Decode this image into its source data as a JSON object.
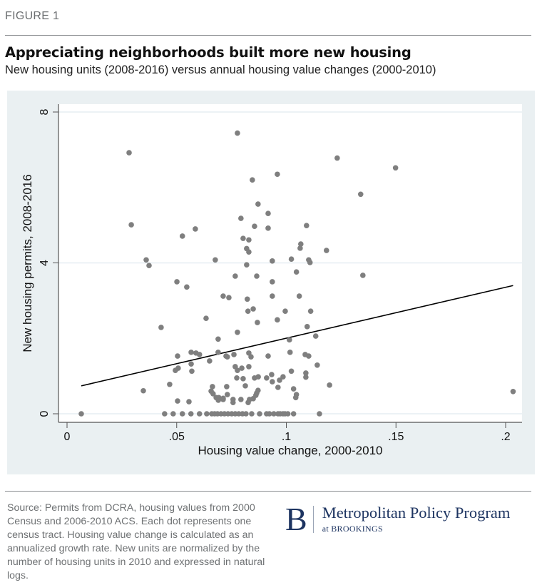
{
  "figure_label": "FIGURE 1",
  "title": "Appreciating neighborhoods built more new housing",
  "subtitle": "New housing units (2008-2016) versus annual housing value changes (2000-2010)",
  "source_note": "Source: Permits from DCRA, housing values from 2000 Census and 2006-2010 ACS. Each dot represents one census tract. Housing value change is calculated as an annualized growth rate. New units are normalized by the number of housing units in 2010 and expressed in natural logs.",
  "logo": {
    "icon": "brookings-b-logo",
    "letter": "B",
    "program": "Metropolitan Policy Program",
    "org": "at BROOKINGS"
  },
  "colors": {
    "panel_bg": "#eaf0f2",
    "plot_bg": "#ffffff",
    "dot": "#7f7f7f",
    "fit_line": "#000000",
    "grid": "#e6eef2",
    "brand": "#1d3461"
  },
  "chart_data": {
    "type": "scatter",
    "title": "Appreciating neighborhoods built more new housing",
    "xlabel": "Housing value change, 2000-2010",
    "ylabel": "New housing permits, 2008-2016",
    "xlim": [
      -0.004,
      0.207
    ],
    "ylim": [
      -0.25,
      8.2
    ],
    "x_ticks": [
      0,
      0.05,
      0.1,
      0.15,
      0.2
    ],
    "x_tick_labels": [
      "0",
      ".05",
      ".1",
      ".15",
      ".2"
    ],
    "y_ticks": [
      0,
      4,
      8
    ],
    "y_tick_labels": [
      "0",
      "4",
      "8"
    ],
    "grid": "horizontal at y ticks",
    "legend": "none",
    "fit_line": {
      "x": [
        0.0065,
        0.2034
      ],
      "y": [
        0.74,
        3.4
      ]
    },
    "points": [
      [
        0.0065,
        0
      ],
      [
        0.0445,
        0
      ],
      [
        0.0484,
        0
      ],
      [
        0.0526,
        0
      ],
      [
        0.0565,
        0
      ],
      [
        0.0604,
        0
      ],
      [
        0.0637,
        0
      ],
      [
        0.066,
        0
      ],
      [
        0.0673,
        0
      ],
      [
        0.0686,
        0
      ],
      [
        0.0702,
        0
      ],
      [
        0.0718,
        0
      ],
      [
        0.0734,
        0
      ],
      [
        0.0751,
        0
      ],
      [
        0.0767,
        0
      ],
      [
        0.0783,
        0
      ],
      [
        0.08,
        0
      ],
      [
        0.0816,
        0
      ],
      [
        0.0842,
        0
      ],
      [
        0.0878,
        0
      ],
      [
        0.091,
        0
      ],
      [
        0.0923,
        0
      ],
      [
        0.0943,
        0
      ],
      [
        0.0962,
        0
      ],
      [
        0.0972,
        0
      ],
      [
        0.0985,
        0
      ],
      [
        0.0994,
        0
      ],
      [
        0.1007,
        0
      ],
      [
        0.1033,
        0
      ],
      [
        0.1151,
        0
      ],
      [
        0.0283,
        6.92
      ],
      [
        0.0293,
        5.01
      ],
      [
        0.0777,
        7.44
      ],
      [
        0.1232,
        6.78
      ],
      [
        0.1498,
        6.52
      ],
      [
        0.0845,
        6.2
      ],
      [
        0.0959,
        6.35
      ],
      [
        0.0871,
        5.56
      ],
      [
        0.0917,
        5.31
      ],
      [
        0.0793,
        5.18
      ],
      [
        0.0855,
        4.97
      ],
      [
        0.0917,
        4.92
      ],
      [
        0.1092,
        4.99
      ],
      [
        0.0526,
        4.71
      ],
      [
        0.0585,
        4.9
      ],
      [
        0.0803,
        4.65
      ],
      [
        0.0829,
        4.61
      ],
      [
        0.1339,
        5.82
      ],
      [
        0.1183,
        4.33
      ],
      [
        0.1066,
        4.5
      ],
      [
        0.1063,
        4.39
      ],
      [
        0.0819,
        4.38
      ],
      [
        0.0829,
        4.29
      ],
      [
        0.1023,
        4.1
      ],
      [
        0.1102,
        4.08
      ],
      [
        0.1108,
        4.01
      ],
      [
        0.0361,
        4.08
      ],
      [
        0.0374,
        3.93
      ],
      [
        0.0676,
        4.08
      ],
      [
        0.0936,
        4.05
      ],
      [
        0.0819,
        3.95
      ],
      [
        0.1046,
        3.76
      ],
      [
        0.0767,
        3.65
      ],
      [
        0.0865,
        3.65
      ],
      [
        0.1349,
        3.67
      ],
      [
        0.0501,
        3.5
      ],
      [
        0.0936,
        3.5
      ],
      [
        0.0546,
        3.36
      ],
      [
        0.0712,
        3.12
      ],
      [
        0.0738,
        3.08
      ],
      [
        0.0936,
        3.12
      ],
      [
        0.1059,
        3.12
      ],
      [
        0.0822,
        3.04
      ],
      [
        0.0849,
        2.78
      ],
      [
        0.1111,
        2.72
      ],
      [
        0.0825,
        2.72
      ],
      [
        0.0995,
        2.72
      ],
      [
        0.0634,
        2.53
      ],
      [
        0.0868,
        2.42
      ],
      [
        0.0959,
        2.49
      ],
      [
        0.1095,
        2.31
      ],
      [
        0.0429,
        2.29
      ],
      [
        0.1134,
        2.06
      ],
      [
        0.0777,
        2.16
      ],
      [
        0.0689,
        1.98
      ],
      [
        0.1014,
        1.96
      ],
      [
        0.0504,
        1.53
      ],
      [
        0.0566,
        1.63
      ],
      [
        0.0588,
        1.61
      ],
      [
        0.0604,
        1.57
      ],
      [
        0.0689,
        1.63
      ],
      [
        0.0725,
        1.53
      ],
      [
        0.0731,
        1.51
      ],
      [
        0.0761,
        1.57
      ],
      [
        0.0829,
        1.61
      ],
      [
        0.0839,
        1.51
      ],
      [
        0.0917,
        1.53
      ],
      [
        0.1017,
        1.63
      ],
      [
        0.1086,
        1.57
      ],
      [
        0.1102,
        1.53
      ],
      [
        0.0507,
        1.21
      ],
      [
        0.0494,
        1.15
      ],
      [
        0.0566,
        1.32
      ],
      [
        0.0569,
        1.13
      ],
      [
        0.065,
        1.4
      ],
      [
        0.0767,
        1.25
      ],
      [
        0.0777,
        1.15
      ],
      [
        0.0797,
        1.21
      ],
      [
        0.0829,
        1.25
      ],
      [
        0.0855,
        0.95
      ],
      [
        0.0803,
        0.93
      ],
      [
        0.0813,
        0.74
      ],
      [
        0.091,
        0.95
      ],
      [
        0.0933,
        1.04
      ],
      [
        0.0985,
        0.98
      ],
      [
        0.1023,
        1.13
      ],
      [
        0.1089,
        1.08
      ],
      [
        0.1089,
        0.97
      ],
      [
        0.1141,
        1.29
      ],
      [
        0.1197,
        0.76
      ],
      [
        0.0468,
        0.78
      ],
      [
        0.0348,
        0.61
      ],
      [
        0.0504,
        0.34
      ],
      [
        0.0556,
        0.32
      ],
      [
        0.0663,
        0.72
      ],
      [
        0.0657,
        0.6
      ],
      [
        0.0666,
        0.53
      ],
      [
        0.068,
        0.43
      ],
      [
        0.0692,
        0.43
      ],
      [
        0.0712,
        0.41
      ],
      [
        0.069,
        0.36
      ],
      [
        0.0712,
        0.38
      ],
      [
        0.0757,
        0.3
      ],
      [
        0.0757,
        0.38
      ],
      [
        0.0793,
        0.38
      ],
      [
        0.0826,
        0.3
      ],
      [
        0.0832,
        0.38
      ],
      [
        0.0849,
        0.4
      ],
      [
        0.0861,
        0.49
      ],
      [
        0.0865,
        0.55
      ],
      [
        0.0871,
        0.62
      ],
      [
        0.0936,
        0.85
      ],
      [
        0.0962,
        0.7
      ],
      [
        0.1033,
        0.66
      ],
      [
        0.1046,
        0.51
      ],
      [
        0.1043,
        0.43
      ],
      [
        0.0728,
        0.72
      ],
      [
        0.0731,
        0.51
      ],
      [
        0.0872,
        0.98
      ],
      [
        0.0969,
        0.89
      ],
      [
        0.0774,
        0.95
      ],
      [
        0.2034,
        0.59
      ]
    ]
  }
}
